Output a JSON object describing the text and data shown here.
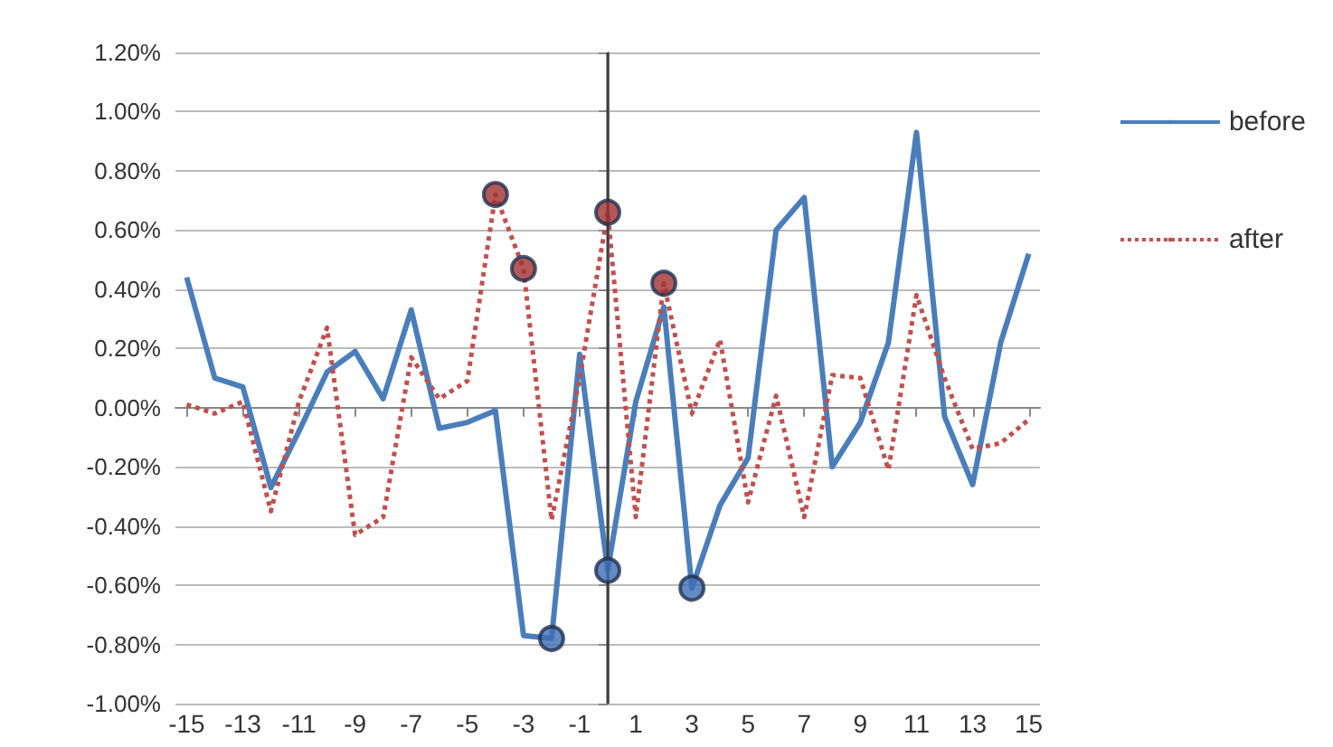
{
  "chart_data": {
    "type": "line",
    "x": [
      -15,
      -14,
      -13,
      -12,
      -11,
      -10,
      -9,
      -8,
      -7,
      -6,
      -5,
      -4,
      -3,
      -2,
      -1,
      0,
      1,
      2,
      3,
      4,
      5,
      6,
      7,
      8,
      9,
      10,
      11,
      12,
      13,
      14,
      15
    ],
    "xlim": [
      -15.4,
      15.4
    ],
    "xticks": [
      -15,
      -13,
      -11,
      -9,
      -7,
      -5,
      -3,
      -1,
      1,
      3,
      5,
      7,
      9,
      11,
      13,
      15
    ],
    "ylim": [
      -1.0,
      1.2
    ],
    "yticks": [
      {
        "value": -1.0,
        "label": "-1.00%"
      },
      {
        "value": -0.8,
        "label": "-0.80%"
      },
      {
        "value": -0.6,
        "label": "-0.60%"
      },
      {
        "value": -0.4,
        "label": "-0.40%"
      },
      {
        "value": -0.2,
        "label": "-0.20%"
      },
      {
        "value": 0,
        "label": "0.00%"
      },
      {
        "value": 0.2,
        "label": "0.20%"
      },
      {
        "value": 0.4,
        "label": "0.40%"
      },
      {
        "value": 0.6,
        "label": "0.60%"
      },
      {
        "value": 0.8,
        "label": "0.80%"
      },
      {
        "value": 1.0,
        "label": "1.00%"
      },
      {
        "value": 1.2,
        "label": "1.20%"
      }
    ],
    "series": [
      {
        "name": "before",
        "color": "#4a7ebb",
        "line_style": "solid",
        "marker": "none",
        "values": [
          0.44,
          0.1,
          0.07,
          -0.27,
          -0.08,
          0.12,
          0.19,
          0.03,
          0.33,
          -0.07,
          -0.05,
          -0.01,
          -0.77,
          -0.78,
          0.18,
          -0.55,
          0.02,
          0.34,
          -0.61,
          -0.33,
          -0.17,
          0.6,
          0.71,
          -0.2,
          -0.05,
          0.22,
          0.93,
          -0.03,
          -0.26,
          0.22,
          0.52
        ]
      },
      {
        "name": "after",
        "color": "#c0504d",
        "line_style": "dotted",
        "marker": "none",
        "values": [
          0.01,
          -0.02,
          0.02,
          -0.35,
          0.02,
          0.27,
          -0.43,
          -0.37,
          0.17,
          0.03,
          0.09,
          0.72,
          0.47,
          -0.38,
          0.1,
          0.66,
          -0.37,
          0.42,
          -0.02,
          0.23,
          -0.32,
          0.04,
          -0.37,
          0.11,
          0.1,
          -0.21,
          0.38,
          0.1,
          -0.14,
          -0.12,
          -0.04
        ]
      },
      {
        "type": "scatter",
        "color": "#a03030",
        "marker": "circle",
        "values": [
          null,
          null,
          null,
          null,
          null,
          null,
          null,
          null,
          null,
          null,
          null,
          0.72,
          0.47,
          null,
          null,
          0.66,
          null,
          0.42,
          null,
          null,
          null,
          null,
          null,
          null,
          null,
          null,
          null,
          null,
          null,
          null,
          null
        ]
      },
      {
        "type": "scatter",
        "color": "#3d6db5",
        "marker": "circle",
        "values": [
          null,
          null,
          null,
          null,
          null,
          null,
          null,
          null,
          null,
          null,
          null,
          null,
          null,
          -0.78,
          null,
          -0.55,
          null,
          null,
          -0.61,
          null,
          null,
          null,
          null,
          null,
          null,
          null,
          null,
          null,
          null,
          null,
          null
        ]
      }
    ],
    "ref_lines": [
      {
        "axis": "x",
        "value": 0,
        "color": "#404040"
      }
    ],
    "grid": "y",
    "legend": "right"
  }
}
